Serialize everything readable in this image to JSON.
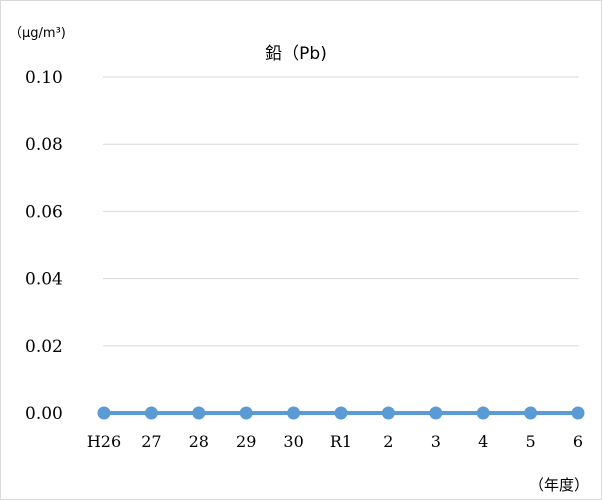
{
  "chart_data": {
    "type": "line",
    "title": "鉛（Pb)",
    "ylabel": "（μg/m³)",
    "xlabel": "（年度）",
    "categories": [
      "H26",
      "27",
      "28",
      "29",
      "30",
      "R1",
      "2",
      "3",
      "4",
      "5",
      "6"
    ],
    "series": [
      {
        "values": [
          0,
          0,
          0,
          0,
          0,
          0,
          0,
          0,
          0,
          0,
          0
        ],
        "color": "#5b9bd5"
      }
    ],
    "ylim": [
      0,
      0.1
    ],
    "yticks": [
      "0.00",
      "0.02",
      "0.04",
      "0.06",
      "0.08",
      "0.10"
    ],
    "grid": true,
    "legend": "none",
    "gridline_color": "#d9d9d9"
  }
}
